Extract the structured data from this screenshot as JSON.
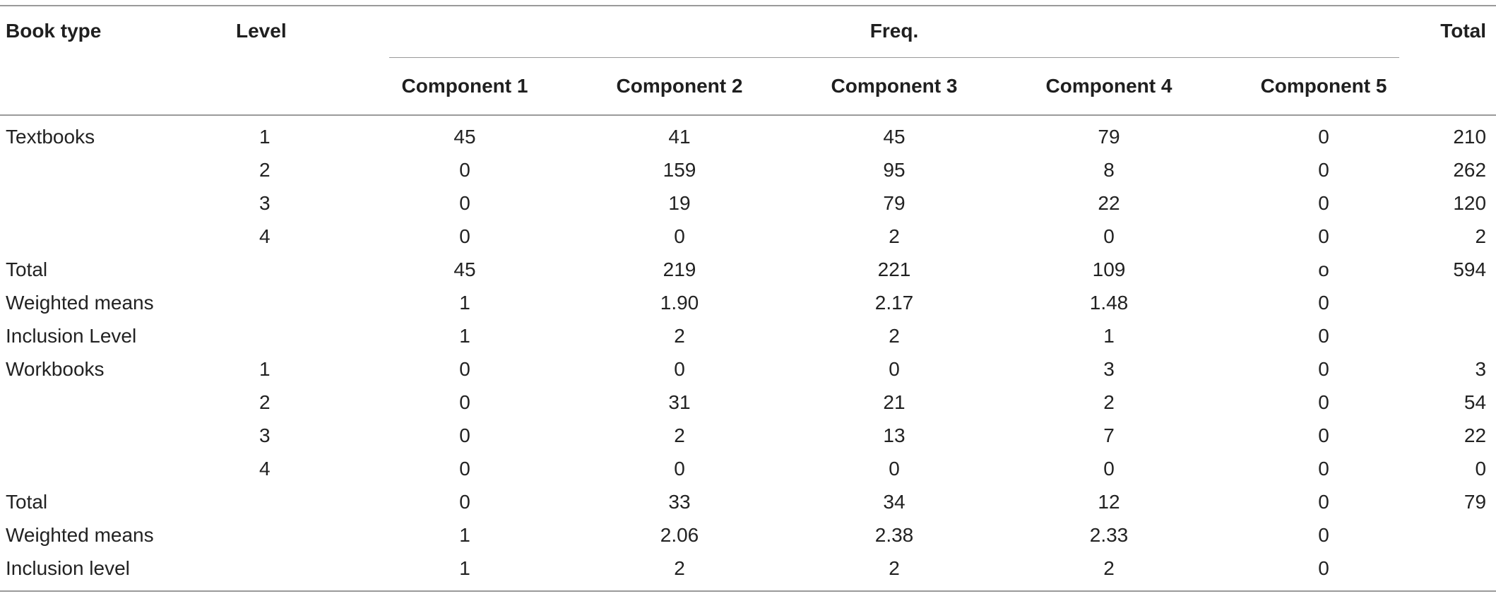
{
  "header": {
    "book_type": "Book type",
    "level": "Level",
    "freq": "Freq.",
    "total": "Total",
    "components": [
      "Component 1",
      "Component 2",
      "Component 3",
      "Component 4",
      "Component 5"
    ]
  },
  "rows": [
    {
      "book": "Textbooks",
      "level": "1",
      "c": [
        "45",
        "41",
        "45",
        "79",
        "0"
      ],
      "total": "210"
    },
    {
      "book": "",
      "level": "2",
      "c": [
        "0",
        "159",
        "95",
        "8",
        "0"
      ],
      "total": "262"
    },
    {
      "book": "",
      "level": "3",
      "c": [
        "0",
        "19",
        "79",
        "22",
        "0"
      ],
      "total": "120"
    },
    {
      "book": "",
      "level": "4",
      "c": [
        "0",
        "0",
        "2",
        "0",
        "0"
      ],
      "total": "2"
    },
    {
      "book": "Total",
      "level": "",
      "c": [
        "45",
        "219",
        "221",
        "109",
        "o"
      ],
      "total": "594"
    },
    {
      "book": "Weighted means",
      "level": "",
      "c": [
        "1",
        "1.90",
        "2.17",
        "1.48",
        "0"
      ],
      "total": ""
    },
    {
      "book": "Inclusion Level",
      "level": "",
      "c": [
        "1",
        "2",
        "2",
        "1",
        "0"
      ],
      "total": ""
    },
    {
      "book": "Workbooks",
      "level": "1",
      "c": [
        "0",
        "0",
        "0",
        "3",
        "0"
      ],
      "total": "3"
    },
    {
      "book": "",
      "level": "2",
      "c": [
        "0",
        "31",
        "21",
        "2",
        "0"
      ],
      "total": "54"
    },
    {
      "book": "",
      "level": "3",
      "c": [
        "0",
        "2",
        "13",
        "7",
        "0"
      ],
      "total": "22"
    },
    {
      "book": "",
      "level": "4",
      "c": [
        "0",
        "0",
        "0",
        "0",
        "0"
      ],
      "total": "0"
    },
    {
      "book": "Total",
      "level": "",
      "c": [
        "0",
        "33",
        "34",
        "12",
        "0"
      ],
      "total": "79"
    },
    {
      "book": "Weighted means",
      "level": "",
      "c": [
        "1",
        "2.06",
        "2.38",
        "2.33",
        "0"
      ],
      "total": ""
    },
    {
      "book": "Inclusion level",
      "level": "",
      "c": [
        "1",
        "2",
        "2",
        "2",
        "0"
      ],
      "total": ""
    }
  ]
}
